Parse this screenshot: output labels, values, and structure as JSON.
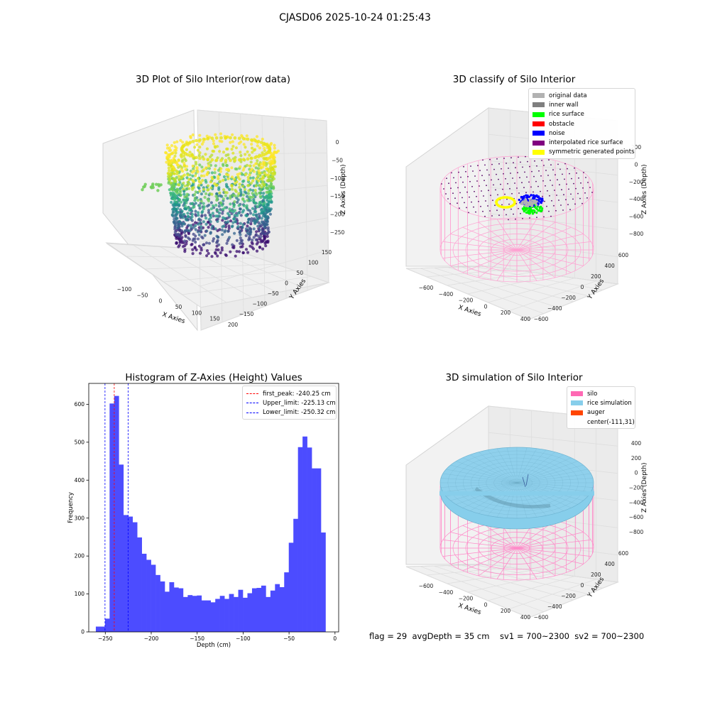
{
  "figure": {
    "suptitle": "CJASD06 2025-10-24 01:25:43",
    "footer": "flag = 29  avgDepth = 35 cm    sv1 = 700~2300  sv2 = 700~2300"
  },
  "chart_data": [
    {
      "type": "scatter",
      "subtype": "3d",
      "title": "3D Plot of Silo Interior(row data)",
      "xlabel": "X Axies",
      "ylabel": "Y Axies",
      "zlabel": "Z Axies (Depth)",
      "x_ticks": [
        "−100",
        "−50",
        "0",
        "50",
        "100",
        "150",
        "200"
      ],
      "y_ticks": [
        "−150",
        "−100",
        "−50",
        "0",
        "50",
        "100",
        "150"
      ],
      "z_ticks": [
        "0",
        "−50",
        "−100",
        "−150",
        "−200",
        "−250"
      ],
      "colormap": "viridis",
      "approx_ranges": {
        "x": [
          -125,
          200
        ],
        "y": [
          -170,
          160
        ],
        "z": [
          -270,
          0
        ]
      }
    },
    {
      "type": "scatter",
      "subtype": "3d",
      "title": "3D classify of Silo Interior",
      "xlabel": "X Axies",
      "ylabel": "Y Axies",
      "zlabel": "Z Axies (Depth)",
      "x_ticks": [
        "−600",
        "−400",
        "−200",
        "0",
        "200",
        "400"
      ],
      "y_ticks": [
        "−600",
        "−400",
        "−200",
        "0",
        "200",
        "400",
        "600"
      ],
      "z_ticks": [
        "200",
        "0",
        "−200",
        "−400",
        "−600",
        "−800"
      ],
      "legend": [
        {
          "label": "original data",
          "color": "#b2b2b2"
        },
        {
          "label": "inner wall",
          "color": "#7f7f7f"
        },
        {
          "label": "rice surface",
          "color": "#00ff00"
        },
        {
          "label": "obstacle",
          "color": "#ff0000"
        },
        {
          "label": "noise",
          "color": "#0000ff"
        },
        {
          "label": "interpolated rice surface",
          "color": "#800080"
        },
        {
          "label": "symmetric generated points",
          "color": "#ffff00"
        }
      ],
      "legend_position": "upper right"
    },
    {
      "type": "bar",
      "subtype": "histogram",
      "title": "Histogram of Z-Axies (Height) Values",
      "xlabel": "Depth (cm)",
      "ylabel": "Frequency",
      "xlim": [
        -268,
        4
      ],
      "ylim": [
        0,
        655
      ],
      "x_ticks": [
        -250,
        -200,
        -150,
        -100,
        -50,
        0
      ],
      "x_tick_labels": [
        "−250",
        "−200",
        "−150",
        "−100",
        "−50",
        "0"
      ],
      "y_ticks": [
        0,
        100,
        200,
        300,
        400,
        500,
        600
      ],
      "bar_color": "#4c4cff",
      "bin_start": -260.3,
      "bin_width": 5.0,
      "values": [
        14,
        14,
        35,
        602,
        622,
        441,
        308,
        304,
        289,
        249,
        206,
        190,
        177,
        150,
        133,
        106,
        131,
        117,
        115,
        92,
        97,
        95,
        96,
        83,
        83,
        78,
        87,
        95,
        87,
        100,
        92,
        111,
        90,
        102,
        115,
        116,
        122,
        92,
        109,
        126,
        118,
        157,
        235,
        298,
        487,
        515,
        486,
        431,
        431,
        262
      ],
      "vlines": [
        {
          "label": "first_peak: -240.25 cm",
          "x": -240.25,
          "color": "#ff0000",
          "style": "dashed"
        },
        {
          "label": "Upper_limit: -225.13 cm",
          "x": -225.13,
          "color": "#0000ff",
          "style": "dashed"
        },
        {
          "label": "Lower_limit: -250.32 cm",
          "x": -250.32,
          "color": "#0000ff",
          "style": "dashed"
        }
      ],
      "legend_position": "upper right"
    },
    {
      "type": "area",
      "subtype": "3d-surface",
      "title": "3D simulation of Silo Interior",
      "xlabel": "X Axies",
      "ylabel": "Y Axies",
      "zlabel": "Z Axies (Depth)",
      "x_ticks": [
        "−600",
        "−400",
        "−200",
        "0",
        "200",
        "400"
      ],
      "y_ticks": [
        "−600",
        "−400",
        "−200",
        "0",
        "200",
        "400",
        "600"
      ],
      "z_ticks": [
        "400",
        "200",
        "0",
        "−200",
        "−400",
        "−600",
        "−800"
      ],
      "legend": [
        {
          "label": "silo",
          "color": "#ff69b4"
        },
        {
          "label": "rice simulation",
          "color": "#87ceeb"
        },
        {
          "label": "auger",
          "color": "#ff4500"
        },
        {
          "label": "center(-111,31)",
          "color": ""
        }
      ],
      "legend_position": "upper right"
    }
  ]
}
